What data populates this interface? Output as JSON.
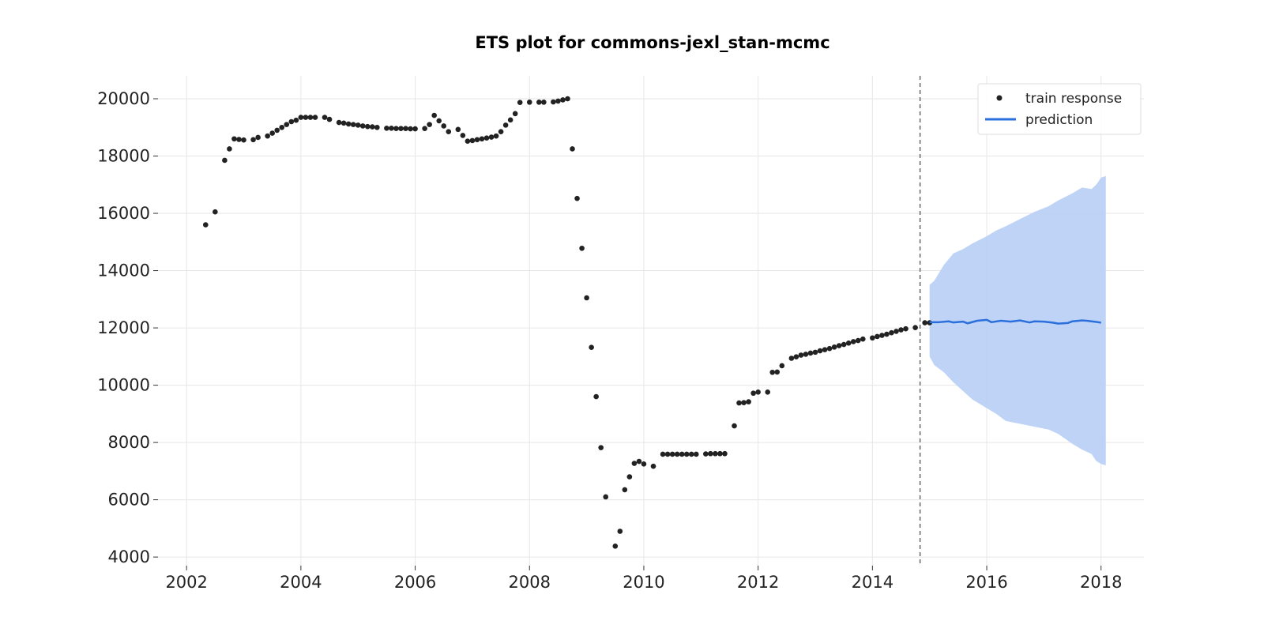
{
  "chart_data": {
    "type": "line",
    "title": "ETS plot for commons-jexl_stan-mcmc",
    "xlabel": "",
    "ylabel": "",
    "x_ticks": [
      "2002",
      "2004",
      "2006",
      "2008",
      "2010",
      "2012",
      "2014",
      "2016",
      "2018"
    ],
    "y_ticks": [
      "4000",
      "6000",
      "8000",
      "10000",
      "12000",
      "14000",
      "16000",
      "18000",
      "20000"
    ],
    "xlim": [
      "2001-07-01",
      "2018-10-01"
    ],
    "ylim": [
      3700,
      20800
    ],
    "grid": true,
    "legend_position": "top-right",
    "train_end": "2014-11-01",
    "colors": {
      "train_response": "#222222",
      "prediction": "#2a6fdb",
      "interval": "#bcd1f7",
      "train_end_line": "#666666"
    },
    "series": [
      {
        "name": "train response",
        "kind": "scatter",
        "points": [
          [
            "2002-05-01",
            15600
          ],
          [
            "2002-07-01",
            16050
          ],
          [
            "2002-09-01",
            17850
          ],
          [
            "2002-10-01",
            18250
          ],
          [
            "2002-11-01",
            18600
          ],
          [
            "2002-12-01",
            18580
          ],
          [
            "2003-01-01",
            18560
          ],
          [
            "2003-03-01",
            18570
          ],
          [
            "2003-04-01",
            18650
          ],
          [
            "2003-06-01",
            18700
          ],
          [
            "2003-07-01",
            18800
          ],
          [
            "2003-08-01",
            18900
          ],
          [
            "2003-09-01",
            19000
          ],
          [
            "2003-10-01",
            19100
          ],
          [
            "2003-11-01",
            19200
          ],
          [
            "2003-12-01",
            19250
          ],
          [
            "2004-01-01",
            19350
          ],
          [
            "2004-02-01",
            19350
          ],
          [
            "2004-03-01",
            19350
          ],
          [
            "2004-04-01",
            19350
          ],
          [
            "2004-06-01",
            19350
          ],
          [
            "2004-07-01",
            19280
          ],
          [
            "2004-09-01",
            19170
          ],
          [
            "2004-10-01",
            19150
          ],
          [
            "2004-11-01",
            19120
          ],
          [
            "2004-12-01",
            19100
          ],
          [
            "2005-01-01",
            19080
          ],
          [
            "2005-02-01",
            19050
          ],
          [
            "2005-03-01",
            19030
          ],
          [
            "2005-04-01",
            19020
          ],
          [
            "2005-05-01",
            19000
          ],
          [
            "2005-07-01",
            18970
          ],
          [
            "2005-08-01",
            18970
          ],
          [
            "2005-09-01",
            18960
          ],
          [
            "2005-10-01",
            18960
          ],
          [
            "2005-11-01",
            18960
          ],
          [
            "2005-12-01",
            18950
          ],
          [
            "2006-01-01",
            18950
          ],
          [
            "2006-03-01",
            18960
          ],
          [
            "2006-04-01",
            19100
          ],
          [
            "2006-05-01",
            19420
          ],
          [
            "2006-06-01",
            19230
          ],
          [
            "2006-07-01",
            19050
          ],
          [
            "2006-08-01",
            18850
          ],
          [
            "2006-10-01",
            18930
          ],
          [
            "2006-11-01",
            18720
          ],
          [
            "2006-12-01",
            18520
          ],
          [
            "2007-01-01",
            18540
          ],
          [
            "2007-02-01",
            18570
          ],
          [
            "2007-03-01",
            18600
          ],
          [
            "2007-04-01",
            18630
          ],
          [
            "2007-05-01",
            18660
          ],
          [
            "2007-06-01",
            18700
          ],
          [
            "2007-07-01",
            18850
          ],
          [
            "2007-08-01",
            19080
          ],
          [
            "2007-09-01",
            19260
          ],
          [
            "2007-10-01",
            19480
          ],
          [
            "2007-11-01",
            19870
          ],
          [
            "2008-01-01",
            19880
          ],
          [
            "2008-03-01",
            19880
          ],
          [
            "2008-04-01",
            19880
          ],
          [
            "2008-06-01",
            19890
          ],
          [
            "2008-07-01",
            19920
          ],
          [
            "2008-08-01",
            19960
          ],
          [
            "2008-09-01",
            20000
          ],
          [
            "2008-10-01",
            18250
          ],
          [
            "2008-11-01",
            16520
          ],
          [
            "2008-12-01",
            14780
          ],
          [
            "2009-01-01",
            13050
          ],
          [
            "2009-02-01",
            11320
          ],
          [
            "2009-03-01",
            9600
          ],
          [
            "2009-04-01",
            7820
          ],
          [
            "2009-05-01",
            6100
          ],
          [
            "2009-07-01",
            4380
          ],
          [
            "2009-08-01",
            4900
          ],
          [
            "2009-09-01",
            6350
          ],
          [
            "2009-10-01",
            6800
          ],
          [
            "2009-11-01",
            7270
          ],
          [
            "2009-12-01",
            7340
          ],
          [
            "2010-01-01",
            7250
          ],
          [
            "2010-03-01",
            7170
          ],
          [
            "2010-05-01",
            7590
          ],
          [
            "2010-06-01",
            7590
          ],
          [
            "2010-07-01",
            7590
          ],
          [
            "2010-08-01",
            7590
          ],
          [
            "2010-09-01",
            7590
          ],
          [
            "2010-10-01",
            7590
          ],
          [
            "2010-11-01",
            7590
          ],
          [
            "2010-12-01",
            7590
          ],
          [
            "2011-02-01",
            7600
          ],
          [
            "2011-03-01",
            7610
          ],
          [
            "2011-04-01",
            7610
          ],
          [
            "2011-05-01",
            7610
          ],
          [
            "2011-06-01",
            7610
          ],
          [
            "2011-08-01",
            8580
          ],
          [
            "2011-09-01",
            9380
          ],
          [
            "2011-10-01",
            9390
          ],
          [
            "2011-11-01",
            9420
          ],
          [
            "2011-12-01",
            9720
          ],
          [
            "2012-01-01",
            9760
          ],
          [
            "2012-03-01",
            9760
          ],
          [
            "2012-04-01",
            10450
          ],
          [
            "2012-05-01",
            10460
          ],
          [
            "2012-06-01",
            10680
          ],
          [
            "2012-08-01",
            10940
          ],
          [
            "2012-09-01",
            10990
          ],
          [
            "2012-10-01",
            11050
          ],
          [
            "2012-11-01",
            11080
          ],
          [
            "2012-12-01",
            11120
          ],
          [
            "2013-01-01",
            11150
          ],
          [
            "2013-02-01",
            11200
          ],
          [
            "2013-03-01",
            11240
          ],
          [
            "2013-04-01",
            11280
          ],
          [
            "2013-05-01",
            11330
          ],
          [
            "2013-06-01",
            11380
          ],
          [
            "2013-07-01",
            11420
          ],
          [
            "2013-08-01",
            11470
          ],
          [
            "2013-09-01",
            11520
          ],
          [
            "2013-10-01",
            11560
          ],
          [
            "2013-11-01",
            11610
          ],
          [
            "2014-01-01",
            11650
          ],
          [
            "2014-02-01",
            11700
          ],
          [
            "2014-03-01",
            11740
          ],
          [
            "2014-04-01",
            11780
          ],
          [
            "2014-05-01",
            11830
          ],
          [
            "2014-06-01",
            11880
          ],
          [
            "2014-07-01",
            11930
          ],
          [
            "2014-08-01",
            11970
          ],
          [
            "2014-10-01",
            12010
          ],
          [
            "2014-12-01",
            12180
          ],
          [
            "2015-01-01",
            12180
          ]
        ]
      },
      {
        "name": "prediction",
        "kind": "line",
        "points": [
          [
            "2015-01-01",
            12200
          ],
          [
            "2015-03-01",
            12200
          ],
          [
            "2015-05-01",
            12230
          ],
          [
            "2015-06-01",
            12190
          ],
          [
            "2015-08-01",
            12220
          ],
          [
            "2015-09-01",
            12160
          ],
          [
            "2015-11-01",
            12250
          ],
          [
            "2016-01-01",
            12280
          ],
          [
            "2016-02-01",
            12200
          ],
          [
            "2016-04-01",
            12250
          ],
          [
            "2016-06-01",
            12220
          ],
          [
            "2016-08-01",
            12260
          ],
          [
            "2016-10-01",
            12190
          ],
          [
            "2016-11-01",
            12230
          ],
          [
            "2017-01-01",
            12220
          ],
          [
            "2017-03-01",
            12180
          ],
          [
            "2017-04-01",
            12150
          ],
          [
            "2017-06-01",
            12170
          ],
          [
            "2017-07-01",
            12230
          ],
          [
            "2017-09-01",
            12260
          ],
          [
            "2017-10-01",
            12250
          ],
          [
            "2017-12-01",
            12210
          ],
          [
            "2018-01-01",
            12180
          ]
        ]
      }
    ],
    "interval": {
      "upper": [
        [
          "2015-01-01",
          13500
        ],
        [
          "2015-02-01",
          13650
        ],
        [
          "2015-04-01",
          14200
        ],
        [
          "2015-06-01",
          14600
        ],
        [
          "2015-08-01",
          14750
        ],
        [
          "2015-10-01",
          14950
        ],
        [
          "2016-01-01",
          15200
        ],
        [
          "2016-03-01",
          15400
        ],
        [
          "2016-05-01",
          15550
        ],
        [
          "2016-08-01",
          15800
        ],
        [
          "2016-11-01",
          16050
        ],
        [
          "2017-02-01",
          16250
        ],
        [
          "2017-04-01",
          16450
        ],
        [
          "2017-07-01",
          16700
        ],
        [
          "2017-09-01",
          16900
        ],
        [
          "2017-11-01",
          16850
        ],
        [
          "2017-12-01",
          17000
        ],
        [
          "2018-01-01",
          17250
        ],
        [
          "2018-02-01",
          17300
        ]
      ],
      "lower": [
        [
          "2015-01-01",
          11000
        ],
        [
          "2015-02-01",
          10700
        ],
        [
          "2015-04-01",
          10450
        ],
        [
          "2015-06-01",
          10100
        ],
        [
          "2015-08-01",
          9800
        ],
        [
          "2015-10-01",
          9500
        ],
        [
          "2016-01-01",
          9200
        ],
        [
          "2016-03-01",
          9000
        ],
        [
          "2016-05-01",
          8750
        ],
        [
          "2016-08-01",
          8650
        ],
        [
          "2016-11-01",
          8550
        ],
        [
          "2017-02-01",
          8450
        ],
        [
          "2017-04-01",
          8300
        ],
        [
          "2017-07-01",
          7950
        ],
        [
          "2017-09-01",
          7750
        ],
        [
          "2017-11-01",
          7600
        ],
        [
          "2017-12-01",
          7350
        ],
        [
          "2018-01-01",
          7250
        ],
        [
          "2018-02-01",
          7200
        ]
      ]
    }
  }
}
